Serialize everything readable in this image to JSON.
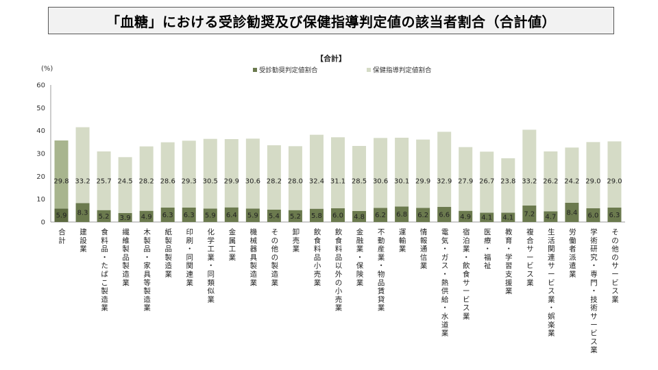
{
  "page": {
    "title": "「血糖」における受診勧奨及び保健指導判定値の該当者割合（合計値）"
  },
  "chart_data": {
    "type": "bar",
    "stacked": true,
    "subtitle": "【合計】",
    "yunit": "(%)",
    "ylim": [
      0,
      60
    ],
    "yticks": [
      0,
      10,
      20,
      30,
      40,
      50,
      60
    ],
    "legend_position": "top",
    "categories": [
      "合計",
      "建設業",
      "食料品・たばこ製造業",
      "繊維製品製造業",
      "木製品・家具等製造業",
      "紙製品製造業",
      "印刷・同関連業",
      "化学工業・同類似業",
      "金属工業",
      "機械器具製造業",
      "その他の製造業",
      "卸売業",
      "飲食料品小売業",
      "飲食料品以外の小売業",
      "金融業・保険業",
      "不動産業・物品賃貸業",
      "運輸業",
      "情報通信業",
      "電気・ガス・熱供給・水道業",
      "宿泊業・飲食サービス業",
      "医療・福祉",
      "教育・学習支援業",
      "複合サービス業",
      "生活関連サービス業・娯楽業",
      "労働者派遣業",
      "学術研究・専門・技術サービス業",
      "その他のサービス業"
    ],
    "series": [
      {
        "name": "受診勧奨判定値割合",
        "color": "#6b7a4e",
        "values": [
          5.9,
          8.3,
          5.2,
          3.9,
          4.9,
          6.3,
          6.3,
          5.9,
          6.4,
          5.9,
          5.4,
          5.2,
          5.8,
          6.0,
          4.8,
          6.2,
          6.8,
          6.2,
          6.6,
          4.9,
          4.1,
          4.1,
          7.2,
          4.7,
          8.4,
          6.0,
          6.3
        ]
      },
      {
        "name": "保健指導判定値割合",
        "color": "#d5dbc6",
        "values": [
          29.8,
          33.2,
          25.7,
          24.5,
          28.2,
          28.6,
          29.3,
          30.5,
          29.9,
          30.6,
          28.2,
          28.0,
          32.4,
          31.1,
          28.5,
          30.6,
          30.1,
          29.9,
          32.9,
          27.9,
          26.7,
          23.8,
          33.2,
          26.2,
          24.2,
          29.0,
          29.0
        ]
      }
    ],
    "highlight": {
      "index": 0,
      "colors": [
        "#5c6a40",
        "#a8b58e"
      ]
    }
  }
}
